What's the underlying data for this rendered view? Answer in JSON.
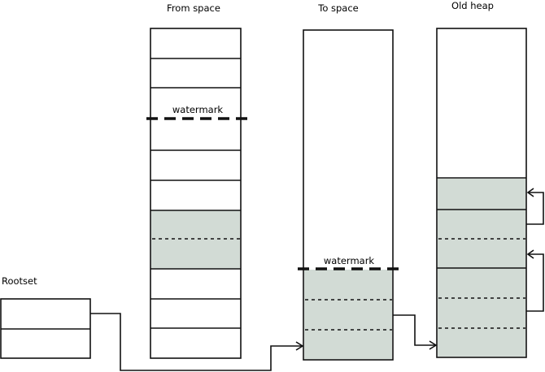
{
  "labels": {
    "from_space": "From space",
    "to_space": "To space",
    "old_heap": "Old heap",
    "rootset": "Rootset",
    "watermark_from": "watermark",
    "watermark_to": "watermark"
  },
  "colors": {
    "live_object_fill": "#d2dbd5",
    "stroke": "#111111"
  }
}
